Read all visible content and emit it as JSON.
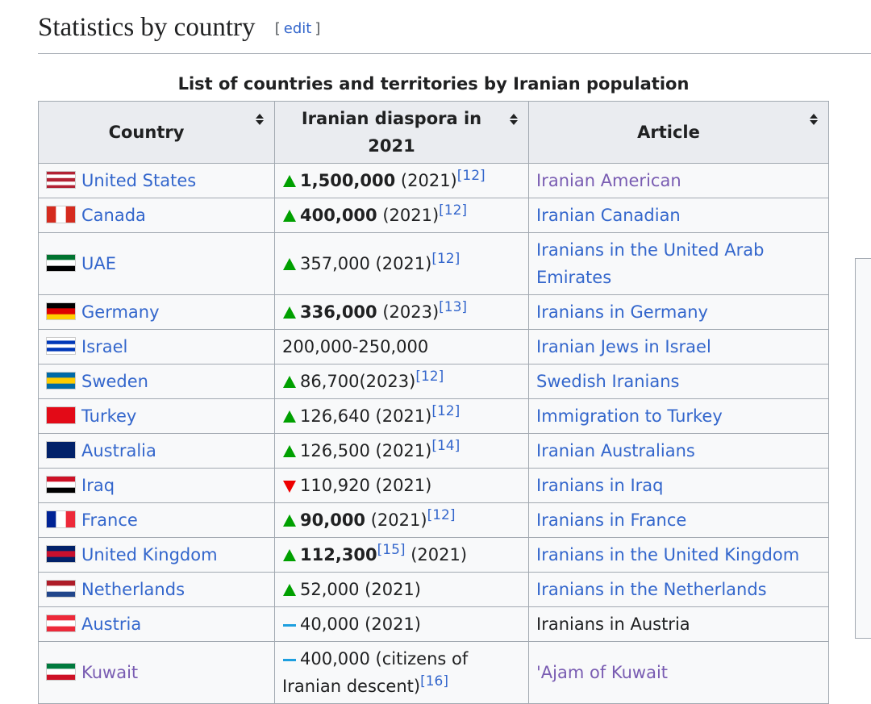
{
  "heading": {
    "title": "Statistics by country",
    "edit_open": "[",
    "edit": "edit",
    "edit_close": "]"
  },
  "table": {
    "caption": "List of countries and territories by Iranian population",
    "headers": [
      "Country",
      "Iranian diaspora in 2021",
      "Article"
    ],
    "rows": [
      {
        "country": {
          "text": "United States",
          "link": "link",
          "flag": {
            "dir": "h",
            "colors": [
              "#b22234",
              "#ffffff",
              "#b22234",
              "#ffffff",
              "#b22234"
            ]
          }
        },
        "diaspora": {
          "trend": "up",
          "parts": [
            {
              "text": "1,500,000",
              "style": "b"
            },
            {
              "text": " (2021)",
              "style": "plain"
            },
            {
              "text": "[12]",
              "style": "sup"
            }
          ]
        },
        "article": {
          "text": "Iranian American",
          "link": "visited"
        }
      },
      {
        "country": {
          "text": "Canada",
          "link": "link",
          "flag": {
            "dir": "v",
            "colors": [
              "#d52b1e",
              "#ffffff",
              "#d52b1e"
            ]
          }
        },
        "diaspora": {
          "trend": "up",
          "parts": [
            {
              "text": "400,000",
              "style": "b"
            },
            {
              "text": " (2021)",
              "style": "plain"
            },
            {
              "text": "[12]",
              "style": "sup"
            }
          ]
        },
        "article": {
          "text": "Iranian Canadian",
          "link": "link"
        }
      },
      {
        "country": {
          "text": "UAE",
          "link": "link",
          "flag": {
            "dir": "h",
            "colors": [
              "#00732f",
              "#ffffff",
              "#000000"
            ]
          }
        },
        "diaspora": {
          "trend": "up",
          "parts": [
            {
              "text": "357,000 (2021)",
              "style": "plain"
            },
            {
              "text": "[12]",
              "style": "sup"
            }
          ]
        },
        "article": {
          "text": "Iranians in the United Arab Emirates",
          "link": "link"
        }
      },
      {
        "country": {
          "text": "Germany",
          "link": "link",
          "flag": {
            "dir": "h",
            "colors": [
              "#000000",
              "#dd0000",
              "#ffce00"
            ]
          }
        },
        "diaspora": {
          "trend": "up",
          "parts": [
            {
              "text": "336,000",
              "style": "b"
            },
            {
              "text": " (2023)",
              "style": "plain"
            },
            {
              "text": "[13]",
              "style": "sup"
            }
          ]
        },
        "article": {
          "text": "Iranians in Germany",
          "link": "link"
        }
      },
      {
        "country": {
          "text": "Israel",
          "link": "link",
          "flag": {
            "dir": "h",
            "colors": [
              "#ffffff",
              "#0038b8",
              "#ffffff",
              "#0038b8",
              "#ffffff"
            ]
          }
        },
        "diaspora": {
          "trend": "none",
          "parts": [
            {
              "text": "200,000-250,000",
              "style": "plain"
            }
          ]
        },
        "article": {
          "text": "Iranian Jews in Israel",
          "link": "link"
        }
      },
      {
        "country": {
          "text": "Sweden",
          "link": "link",
          "flag": {
            "dir": "h",
            "colors": [
              "#006aa7",
              "#fecc00",
              "#006aa7"
            ]
          }
        },
        "diaspora": {
          "trend": "up",
          "parts": [
            {
              "text": "86,700(2023)",
              "style": "plain"
            },
            {
              "text": "[12]",
              "style": "sup"
            }
          ]
        },
        "article": {
          "text": "Swedish Iranians",
          "link": "link"
        }
      },
      {
        "country": {
          "text": "Turkey",
          "link": "link",
          "flag": {
            "dir": "h",
            "colors": [
              "#e30a17"
            ]
          }
        },
        "diaspora": {
          "trend": "up",
          "parts": [
            {
              "text": "126,640 (2021)",
              "style": "plain"
            },
            {
              "text": "[12]",
              "style": "sup"
            }
          ]
        },
        "article": {
          "text": "Immigration to Turkey",
          "link": "link"
        }
      },
      {
        "country": {
          "text": "Australia",
          "link": "link",
          "flag": {
            "dir": "h",
            "colors": [
              "#012169"
            ]
          }
        },
        "diaspora": {
          "trend": "up",
          "parts": [
            {
              "text": "126,500 (2021)",
              "style": "plain"
            },
            {
              "text": "[14]",
              "style": "sup"
            }
          ]
        },
        "article": {
          "text": "Iranian Australians",
          "link": "link"
        }
      },
      {
        "country": {
          "text": "Iraq",
          "link": "link",
          "flag": {
            "dir": "h",
            "colors": [
              "#ce1126",
              "#ffffff",
              "#000000"
            ]
          }
        },
        "diaspora": {
          "trend": "down",
          "parts": [
            {
              "text": "110,920 (2021)",
              "style": "plain"
            }
          ]
        },
        "article": {
          "text": "Iranians in Iraq",
          "link": "link"
        }
      },
      {
        "country": {
          "text": "France",
          "link": "link",
          "flag": {
            "dir": "v",
            "colors": [
              "#002395",
              "#ffffff",
              "#ed2939"
            ]
          }
        },
        "diaspora": {
          "trend": "up",
          "parts": [
            {
              "text": "90,000",
              "style": "b"
            },
            {
              "text": " (2021)",
              "style": "plain"
            },
            {
              "text": "[12]",
              "style": "sup"
            }
          ]
        },
        "article": {
          "text": "Iranians in France",
          "link": "link"
        }
      },
      {
        "country": {
          "text": "United Kingdom",
          "link": "link",
          "flag": {
            "dir": "h",
            "colors": [
              "#012169",
              "#c8102e",
              "#012169"
            ]
          }
        },
        "diaspora": {
          "trend": "up",
          "parts": [
            {
              "text": "112,300",
              "style": "b"
            },
            {
              "text": "[15]",
              "style": "sup"
            },
            {
              "text": " (2021)",
              "style": "plain"
            }
          ]
        },
        "article": {
          "text": "Iranians in the United Kingdom",
          "link": "link"
        }
      },
      {
        "country": {
          "text": "Netherlands",
          "link": "link",
          "flag": {
            "dir": "h",
            "colors": [
              "#ae1c28",
              "#ffffff",
              "#21468b"
            ]
          }
        },
        "diaspora": {
          "trend": "up",
          "parts": [
            {
              "text": "52,000 (2021)",
              "style": "plain"
            }
          ]
        },
        "article": {
          "text": "Iranians in the Netherlands",
          "link": "link"
        }
      },
      {
        "country": {
          "text": "Austria",
          "link": "link",
          "flag": {
            "dir": "h",
            "colors": [
              "#ed2939",
              "#ffffff",
              "#ed2939"
            ]
          }
        },
        "diaspora": {
          "trend": "flat",
          "parts": [
            {
              "text": "40,000 (2021)",
              "style": "plain"
            }
          ]
        },
        "article": {
          "text": "Iranians in Austria",
          "link": "none"
        }
      },
      {
        "country": {
          "text": "Kuwait",
          "link": "visited",
          "flag": {
            "dir": "h",
            "colors": [
              "#007a3d",
              "#ffffff",
              "#ce1126"
            ]
          }
        },
        "diaspora": {
          "trend": "flat",
          "parts": [
            {
              "text": "400,000 (citizens of Iranian descent)",
              "style": "plain"
            },
            {
              "text": "[16]",
              "style": "sup"
            }
          ]
        },
        "article": {
          "text": "'Ajam of Kuwait",
          "link": "visited"
        }
      }
    ]
  }
}
